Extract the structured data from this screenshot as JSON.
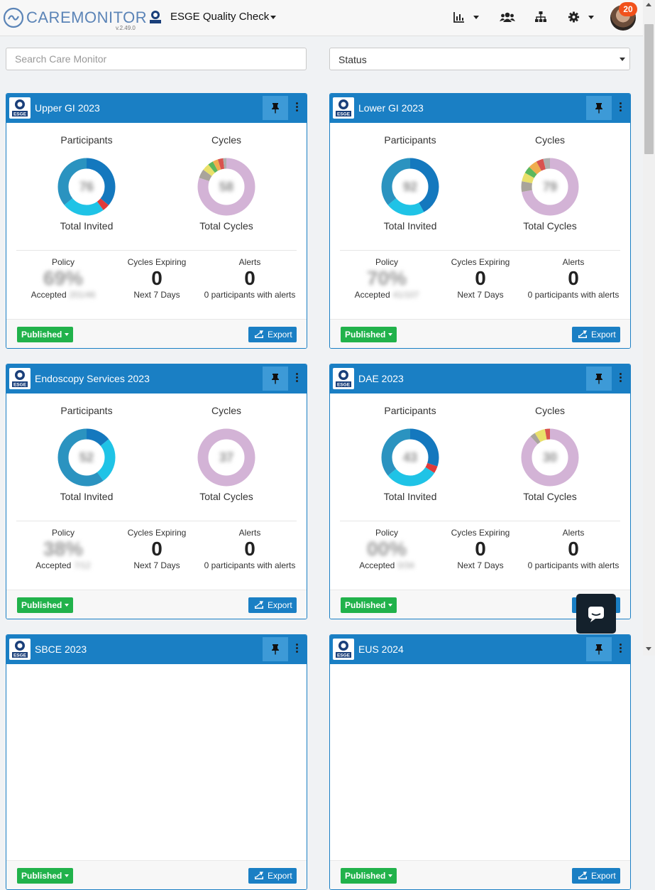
{
  "app": {
    "name_light": "CARE",
    "name_bold": "MONITOR",
    "version": "v.2.49.0"
  },
  "project": {
    "logo": "esge-logo",
    "name": "ESGE Quality Check"
  },
  "toolbar": {
    "icons": [
      "bar-chart-icon",
      "users-icon",
      "sitemap-icon",
      "gear-icon"
    ]
  },
  "user": {
    "notifications": "20"
  },
  "search": {
    "placeholder": "Search Care Monitor",
    "value": ""
  },
  "filter": {
    "status_label": "Status"
  },
  "labels": {
    "participants": "Participants",
    "cycles": "Cycles",
    "total_invited": "Total Invited",
    "total_cycles": "Total Cycles",
    "policy": "Policy",
    "cycles_expiring": "Cycles Expiring",
    "alerts": "Alerts",
    "accepted": "Accepted",
    "next_7_days": "Next 7 Days",
    "participants_with_alerts": "0 participants with alerts",
    "published": "Published",
    "export": "Export"
  },
  "colors": {
    "primary": "#1a7fc4",
    "success": "#21b24b",
    "badge": "#f1511b"
  },
  "cards": [
    {
      "title": "Upper GI 2023",
      "participants_total": "76",
      "cycles_total": "58",
      "policy_pct": "69%",
      "accepted_detail": "201/46",
      "cycles_expiring": "0",
      "alerts": "0",
      "participants_segments": [
        {
          "color": "#1478be",
          "value": 0.36
        },
        {
          "color": "#e03a3a",
          "value": 0.04
        },
        {
          "color": "#1fc3e6",
          "value": 0.24
        },
        {
          "color": "#2b93c0",
          "value": 0.36
        }
      ],
      "cycles_segments": [
        {
          "color": "#d3b3d6",
          "value": 0.8
        },
        {
          "color": "#a9a49b",
          "value": 0.05
        },
        {
          "color": "#e9e06a",
          "value": 0.04
        },
        {
          "color": "#5cb85c",
          "value": 0.03
        },
        {
          "color": "#f0ad4e",
          "value": 0.03
        },
        {
          "color": "#d9534f",
          "value": 0.03
        },
        {
          "color": "#b0b0b0",
          "value": 0.02
        }
      ]
    },
    {
      "title": "Lower GI 2023",
      "participants_total": "92",
      "cycles_total": "79",
      "policy_pct": "70%",
      "accepted_detail": "41/107",
      "cycles_expiring": "0",
      "alerts": "0",
      "participants_segments": [
        {
          "color": "#1478be",
          "value": 0.42
        },
        {
          "color": "#1fc3e6",
          "value": 0.22
        },
        {
          "color": "#2b93c0",
          "value": 0.36
        }
      ],
      "cycles_segments": [
        {
          "color": "#d3b3d6",
          "value": 0.72
        },
        {
          "color": "#a9a49b",
          "value": 0.06
        },
        {
          "color": "#e9e06a",
          "value": 0.05
        },
        {
          "color": "#5cb85c",
          "value": 0.04
        },
        {
          "color": "#f0ad4e",
          "value": 0.05
        },
        {
          "color": "#d9534f",
          "value": 0.04
        },
        {
          "color": "#b0b0b0",
          "value": 0.04
        }
      ]
    },
    {
      "title": "Endoscopy Services 2023",
      "participants_total": "52",
      "cycles_total": "37",
      "policy_pct": "38%",
      "accepted_detail": "7/12",
      "cycles_expiring": "0",
      "alerts": "0",
      "participants_segments": [
        {
          "color": "#1478be",
          "value": 0.14
        },
        {
          "color": "#1fc3e6",
          "value": 0.26
        },
        {
          "color": "#2b93c0",
          "value": 0.6
        }
      ],
      "cycles_segments": [
        {
          "color": "#d3b3d6",
          "value": 1.0
        }
      ]
    },
    {
      "title": "DAE 2023",
      "participants_total": "43",
      "cycles_total": "30",
      "policy_pct": "00%",
      "accepted_detail": "0/34",
      "cycles_expiring": "0",
      "alerts": "0",
      "participants_segments": [
        {
          "color": "#1478be",
          "value": 0.3
        },
        {
          "color": "#e03a3a",
          "value": 0.04
        },
        {
          "color": "#1fc3e6",
          "value": 0.3
        },
        {
          "color": "#2b93c0",
          "value": 0.36
        }
      ],
      "cycles_segments": [
        {
          "color": "#d3b3d6",
          "value": 0.88
        },
        {
          "color": "#a9a49b",
          "value": 0.03
        },
        {
          "color": "#e9e06a",
          "value": 0.06
        },
        {
          "color": "#d9534f",
          "value": 0.03
        }
      ]
    },
    {
      "title": "SBCE 2023"
    },
    {
      "title": "EUS 2024"
    }
  ]
}
